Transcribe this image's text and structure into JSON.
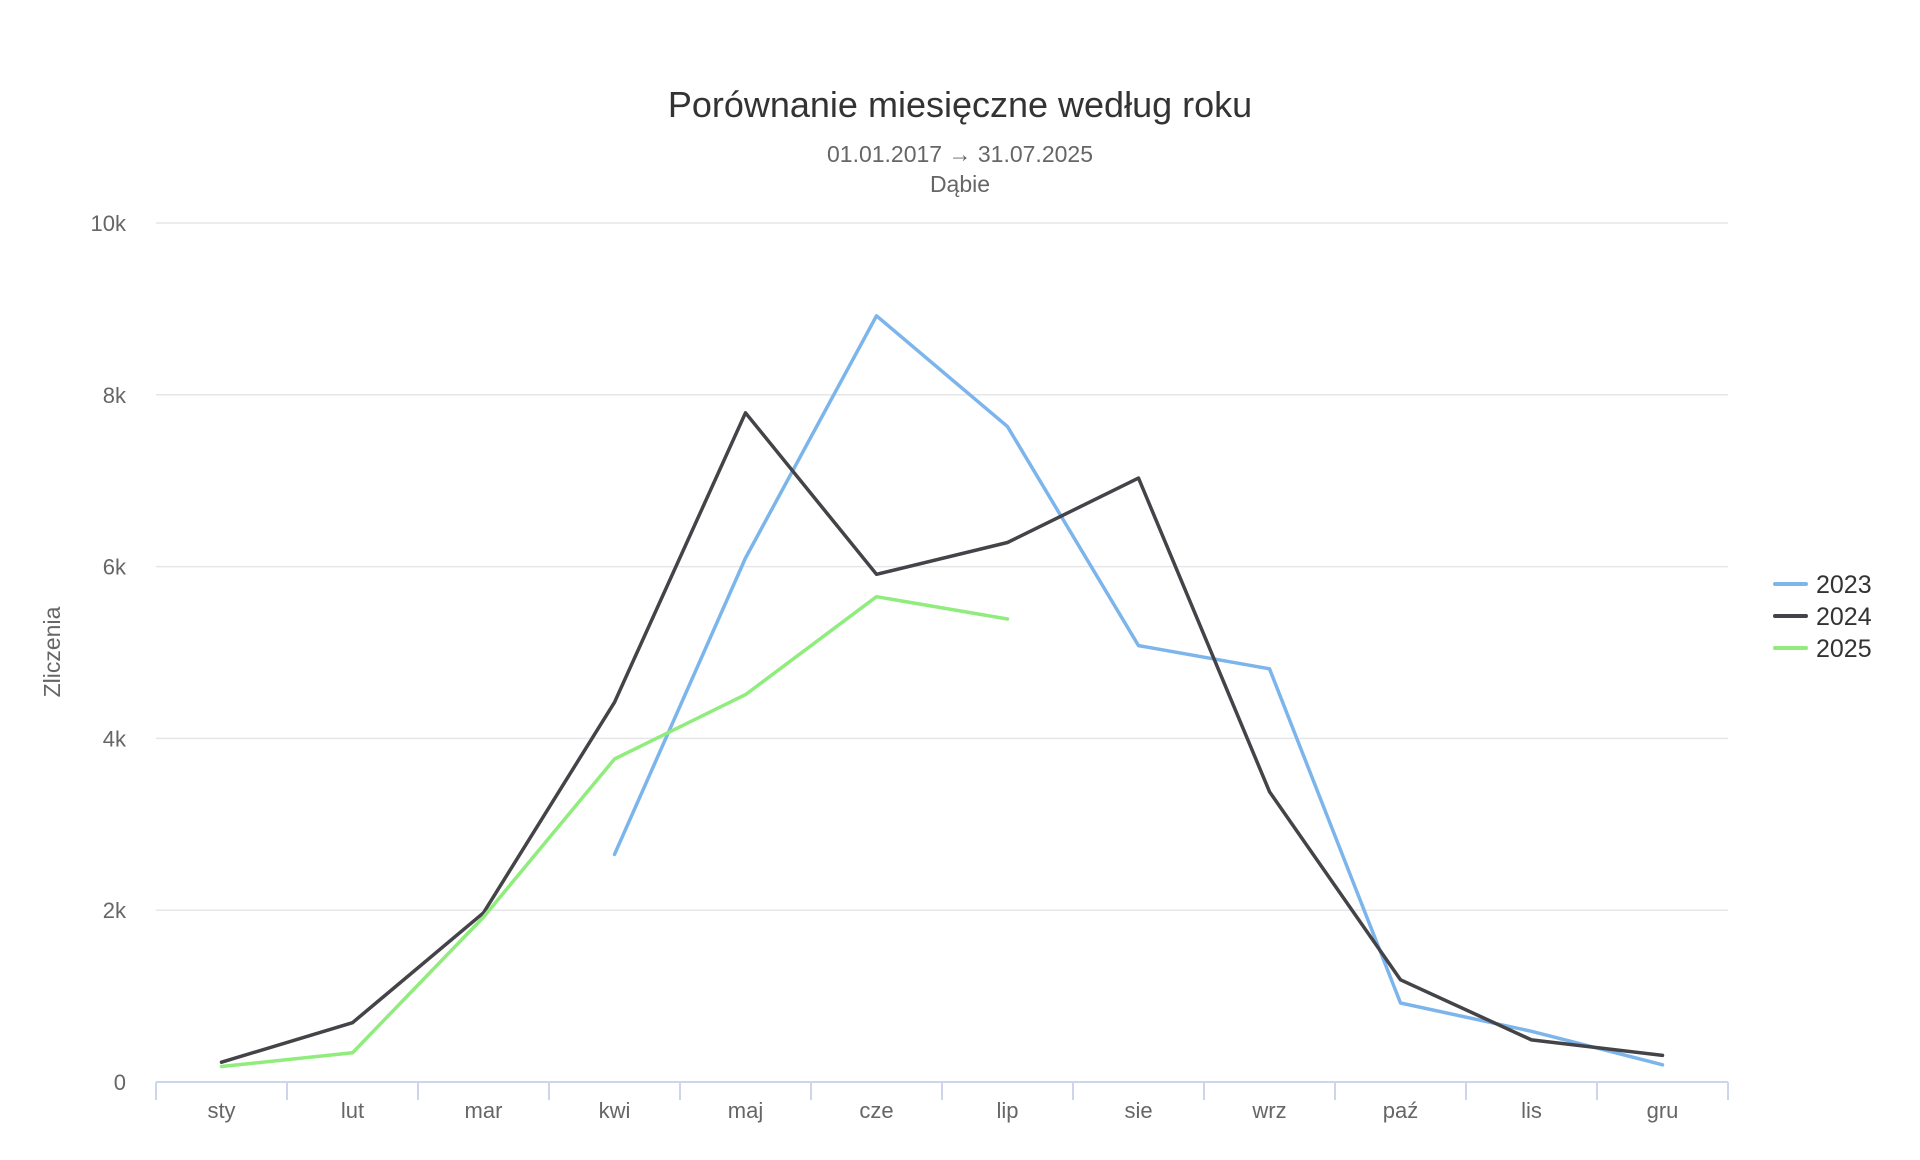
{
  "chart_data": {
    "type": "line",
    "title": "Porównanie miesięczne według roku",
    "subtitle_lines": [
      "01.01.2017 → 31.07.2025",
      "Dąbie"
    ],
    "xlabel": "",
    "ylabel": "Zliczenia",
    "categories": [
      "sty",
      "lut",
      "mar",
      "kwi",
      "maj",
      "cze",
      "lip",
      "sie",
      "wrz",
      "paź",
      "lis",
      "gru"
    ],
    "ylim": [
      0,
      10000
    ],
    "yticks": [
      0,
      2000,
      4000,
      6000,
      8000,
      10000
    ],
    "ytick_labels": [
      "0",
      "2k",
      "4k",
      "6k",
      "8k",
      "10k"
    ],
    "grid": true,
    "legend_position": "right",
    "series": [
      {
        "name": "2023",
        "color": "#7cb5ec",
        "values": [
          null,
          null,
          null,
          2650,
          6100,
          8920,
          7630,
          5080,
          4810,
          920,
          590,
          200
        ]
      },
      {
        "name": "2024",
        "color": "#434348",
        "values": [
          230,
          690,
          1970,
          4420,
          7790,
          5910,
          6280,
          7030,
          3380,
          1190,
          490,
          310
        ]
      },
      {
        "name": "2025",
        "color": "#90ed7d",
        "values": [
          180,
          340,
          1920,
          3760,
          4510,
          5650,
          5390,
          null,
          null,
          null,
          null,
          null
        ]
      }
    ]
  }
}
